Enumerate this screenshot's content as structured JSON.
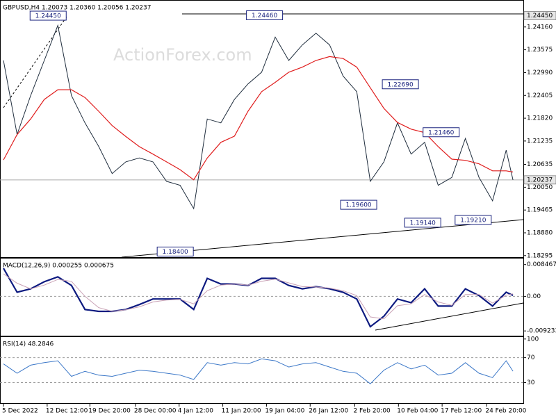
{
  "chart_data": [
    {
      "type": "line",
      "title": "GBPUSD,H4  1.20073 1.20360 1.20056 1.20237",
      "watermark": "ActionForex.com",
      "x": [
        0,
        14,
        28,
        42,
        56,
        70,
        84,
        98,
        112,
        126,
        140,
        154,
        168,
        182,
        196,
        210,
        224,
        238,
        252,
        266,
        280,
        294,
        308,
        322,
        336,
        350,
        364,
        378,
        392,
        406,
        420,
        434,
        448,
        462,
        476,
        490,
        504,
        518,
        525
      ],
      "series": [
        {
          "color": "#1f2d3d",
          "values": [
            1.233,
            1.214,
            1.224,
            1.233,
            1.242,
            1.224,
            1.217,
            1.211,
            1.204,
            1.207,
            1.208,
            1.207,
            1.202,
            1.201,
            1.195,
            1.218,
            1.217,
            1.223,
            1.227,
            1.23,
            1.239,
            1.233,
            1.237,
            1.24,
            1.237,
            1.229,
            1.225,
            1.202,
            1.207,
            1.217,
            1.209,
            1.212,
            1.201,
            1.203,
            1.213,
            1.203,
            1.197,
            1.21,
            1.20237
          ]
        },
        {
          "color": "#e01e1e",
          "values": [
            1.2075,
            1.214,
            1.218,
            1.223,
            1.2255,
            1.2255,
            1.2235,
            1.22,
            1.2163,
            1.2135,
            1.2109,
            1.209,
            1.207,
            1.205,
            1.2024,
            1.208,
            1.212,
            1.2136,
            1.22,
            1.225,
            1.2274,
            1.23,
            1.2313,
            1.233,
            1.234,
            1.2335,
            1.2313,
            1.226,
            1.2207,
            1.2171,
            1.2154,
            1.2145,
            1.2109,
            1.2077,
            1.2074,
            1.2065,
            1.2047,
            1.2047,
            1.2044
          ]
        }
      ],
      "xlim": [
        -3.6,
        535.7
      ],
      "ylim": [
        1.18256,
        1.24816
      ],
      "yticks": [
        {
          "value": 1.2416,
          "label": "1.24160"
        },
        {
          "value": 1.23575,
          "label": "1.23575"
        },
        {
          "value": 1.2299,
          "label": "1.22990"
        },
        {
          "value": 1.22405,
          "label": "1.22405"
        },
        {
          "value": 1.2182,
          "label": "1.21820"
        },
        {
          "value": 1.21235,
          "label": "1.21235"
        },
        {
          "value": 1.20635,
          "label": "1.20635"
        },
        {
          "value": 1.2005,
          "label": "1.20050"
        },
        {
          "value": 1.19465,
          "label": "1.19465"
        },
        {
          "value": 1.1888,
          "label": "1.18880"
        },
        {
          "value": 1.18295,
          "label": "1.18295"
        }
      ],
      "price_labels": [
        {
          "value": 1.2445,
          "label": "1.24450"
        },
        {
          "value": 1.20237,
          "label": "1.20237"
        }
      ],
      "annotations": [
        {
          "x": 46,
          "value": 1.2445,
          "label": "1.24450"
        },
        {
          "x": 269,
          "value": 1.2446,
          "label": "1.24460"
        },
        {
          "x": 409,
          "value": 1.2269,
          "label": "1.22690"
        },
        {
          "x": 451,
          "value": 1.2146,
          "label": "1.21460"
        },
        {
          "x": 366,
          "value": 1.196,
          "label": "1.19600"
        },
        {
          "x": 432,
          "value": 1.1914,
          "label": "1.19140"
        },
        {
          "x": 484,
          "value": 1.1921,
          "label": "1.19210"
        },
        {
          "x": 177,
          "value": 1.184,
          "label": "1.18400"
        }
      ]
    },
    {
      "type": "line",
      "title": "MACD(12,26,9) 0.000255 0.000675",
      "x": [
        0,
        14,
        28,
        42,
        56,
        70,
        84,
        98,
        112,
        126,
        140,
        154,
        168,
        182,
        196,
        210,
        224,
        238,
        252,
        266,
        280,
        294,
        308,
        322,
        336,
        350,
        364,
        378,
        392,
        406,
        420,
        434,
        448,
        462,
        476,
        490,
        504,
        518,
        525
      ],
      "series": [
        {
          "color": "#0d1a80",
          "values": [
            0.0075,
            0.0011,
            0.002,
            0.0039,
            0.0052,
            0.0029,
            -0.0035,
            -0.004,
            -0.004,
            -0.0035,
            -0.0022,
            -0.0007,
            -0.0007,
            -0.0007,
            -0.0035,
            0.0048,
            0.0033,
            0.0033,
            0.0029,
            0.0048,
            0.0048,
            0.0029,
            0.002,
            0.0026,
            0.002,
            0.0011,
            -0.0007,
            -0.0081,
            -0.0053,
            -0.0007,
            -0.0017,
            0.002,
            -0.0026,
            -0.0026,
            0.002,
            0.0002,
            -0.0026,
            0.0011,
            0.000255
          ]
        },
        {
          "color": "#c8a0b4",
          "values": [
            0.006,
            0.0035,
            0.002,
            0.003,
            0.0045,
            0.004,
            0.0,
            -0.003,
            -0.004,
            -0.0036,
            -0.0028,
            -0.0015,
            -0.001,
            -0.0008,
            -0.002,
            0.0015,
            0.003,
            0.0033,
            0.003,
            0.004,
            0.0046,
            0.0036,
            0.0026,
            0.0025,
            0.0022,
            0.0015,
            0.0002,
            -0.0055,
            -0.006,
            -0.0025,
            -0.002,
            0.0005,
            -0.0015,
            -0.0024,
            0.0005,
            0.0005,
            -0.0018,
            0.0003,
            0.000675
          ]
        }
      ],
      "xlim": [
        -3.6,
        535.7
      ],
      "ylim": [
        -0.0105,
        0.0099
      ],
      "yticks": [
        0.008467,
        {
          "value": 0,
          "label": "0.00"
        },
        -0.009233
      ],
      "levels": [
        0
      ]
    },
    {
      "type": "line",
      "title": "RSI(14) 48.2846",
      "x": [
        0,
        14,
        28,
        42,
        56,
        70,
        84,
        98,
        112,
        126,
        140,
        154,
        168,
        182,
        196,
        210,
        224,
        238,
        252,
        266,
        280,
        294,
        308,
        322,
        336,
        350,
        364,
        378,
        392,
        406,
        420,
        434,
        448,
        462,
        476,
        490,
        504,
        518,
        525
      ],
      "series": [
        {
          "color": "#3c78c8",
          "values": [
            60,
            45,
            58,
            62,
            65,
            40,
            48,
            42,
            40,
            45,
            50,
            48,
            45,
            42,
            35,
            62,
            58,
            62,
            60,
            68,
            65,
            55,
            60,
            62,
            55,
            48,
            45,
            28,
            50,
            62,
            52,
            58,
            42,
            45,
            62,
            45,
            38,
            65,
            48.2846
          ]
        }
      ],
      "xlim": [
        -3.6,
        535.7
      ],
      "ylim": [
        -3,
        102
      ],
      "yticks": [
        100,
        70,
        30
      ],
      "levels": [
        70,
        30
      ],
      "xticks": [
        {
          "value": 0,
          "label": "5 Dec 2022"
        },
        {
          "value": 45,
          "label": "12 Dec 12:00"
        },
        {
          "value": 89,
          "label": "19 Dec 20:00"
        },
        {
          "value": 136,
          "label": "28 Dec 00:00"
        },
        {
          "value": 181,
          "label": "4 Jan 12:00"
        },
        {
          "value": 226,
          "label": "11 Jan 20:00"
        },
        {
          "value": 271,
          "label": "19 Jan 04:00"
        },
        {
          "value": 316,
          "label": "26 Jan 12:00"
        },
        {
          "value": 362,
          "label": "2 Feb 20:00"
        },
        {
          "value": 407,
          "label": "10 Feb 04:00"
        },
        {
          "value": 452,
          "label": "17 Feb 12:00"
        },
        {
          "value": 498,
          "label": "24 Feb 20:00"
        }
      ]
    }
  ]
}
